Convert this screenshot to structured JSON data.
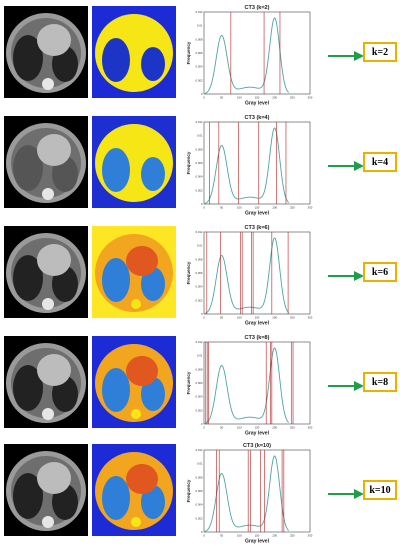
{
  "panels": [
    {
      "plot_title": "CT3  (k=2)",
      "k_label": "k=2",
      "thresholds": [
        76,
        170,
        215
      ]
    },
    {
      "plot_title": "CT3  (k=4)",
      "k_label": "k=4",
      "thresholds": [
        15,
        42,
        98,
        155,
        205,
        232
      ]
    },
    {
      "plot_title": "CT3  (k=6)",
      "k_label": "k=6",
      "thresholds": [
        8,
        47,
        103,
        108,
        134,
        139,
        192,
        238
      ]
    },
    {
      "plot_title": "CT3  (k=8)",
      "k_label": "k=8",
      "thresholds": [
        5,
        9,
        13,
        176,
        188,
        192,
        247,
        252
      ]
    },
    {
      "plot_title": "CT3  (k=10)",
      "k_label": "k=10",
      "thresholds": [
        35,
        43,
        125,
        131,
        160,
        171,
        221,
        226
      ]
    }
  ],
  "axis": {
    "xlabel": "Gray  level",
    "ylabel": "Frequency",
    "xticks": [
      "0",
      "50",
      "100",
      "150",
      "200",
      "250",
      "300"
    ],
    "yticks": [
      "0",
      "0.002",
      "0.004",
      "0.006",
      "0.008",
      "0.01",
      "0.012"
    ]
  },
  "colors": {
    "curve": "#4fa3a3",
    "threshold": "#b22222",
    "arrow": "#1e9e4a",
    "kbox_border": "#e9b200"
  }
}
